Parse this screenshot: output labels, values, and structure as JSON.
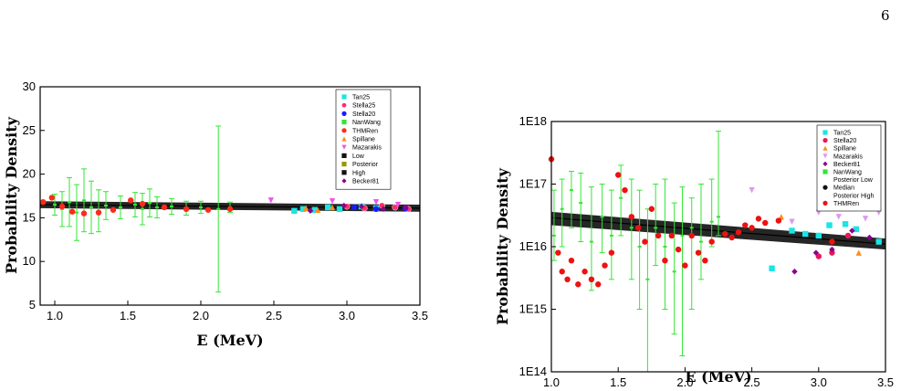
{
  "page": {
    "number": "6"
  },
  "chart_data": [
    {
      "type": "scatter",
      "title": "",
      "xlabel": "E (MeV)",
      "ylabel": "Probability Density",
      "xlim": [
        0.9,
        3.5
      ],
      "ylim": [
        5,
        30
      ],
      "yscale": "linear",
      "x_ticks": [
        "1.0",
        "1.5",
        "2.0",
        "2.5",
        "3.0",
        "3.5"
      ],
      "y_ticks": [
        "5",
        "10",
        "15",
        "20",
        "25",
        "30"
      ],
      "legend_position": "top-right",
      "band": {
        "x": [
          0.9,
          3.5
        ],
        "median": [
          16.5,
          16.1
        ],
        "low": [
          16.1,
          15.7
        ],
        "high": [
          16.9,
          16.5
        ],
        "color": "#000000"
      },
      "series": [
        {
          "name": "Tan25",
          "color": "#19e5e5",
          "marker": "square",
          "points": [
            [
              2.64,
              15.8
            ],
            [
              2.7,
              16.0
            ],
            [
              2.78,
              15.9
            ],
            [
              2.87,
              16.2
            ],
            [
              2.95,
              16.0
            ],
            [
              3.1,
              16.3
            ],
            [
              3.2,
              16.1
            ]
          ]
        },
        {
          "name": "Stella25",
          "color": "#ff2a6d",
          "marker": "half-circle",
          "points": [
            [
              3.0,
              16.3
            ],
            [
              3.12,
              16.1
            ],
            [
              3.24,
              16.4
            ],
            [
              3.33,
              16.2
            ],
            [
              3.42,
              16.0
            ]
          ]
        },
        {
          "name": "Stella20",
          "color": "#1a1aff",
          "marker": "circle",
          "points": [
            [
              3.05,
              16.2
            ],
            [
              3.2,
              16.0
            ],
            [
              3.4,
              16.1
            ]
          ]
        },
        {
          "name": "NanWang",
          "color": "#33e633",
          "marker": "dot",
          "points": [
            [
              1.0,
              16.5,
              1.2
            ],
            [
              1.05,
              16.0,
              2.0
            ],
            [
              1.1,
              16.8,
              2.8
            ],
            [
              1.15,
              15.6,
              3.2
            ],
            [
              1.2,
              17.0,
              3.6
            ],
            [
              1.25,
              16.2,
              3.0
            ],
            [
              1.3,
              15.8,
              2.4
            ],
            [
              1.35,
              16.4,
              1.6
            ],
            [
              1.45,
              16.2,
              1.3
            ],
            [
              1.55,
              16.5,
              1.4
            ],
            [
              1.6,
              16.0,
              1.8
            ],
            [
              1.65,
              16.7,
              1.6
            ],
            [
              1.7,
              16.2,
              1.2
            ],
            [
              1.8,
              16.3,
              0.9
            ],
            [
              1.9,
              16.1,
              0.8
            ],
            [
              2.0,
              16.2,
              0.7
            ],
            [
              2.12,
              16.0,
              9.5
            ],
            [
              2.2,
              16.2,
              0.6
            ]
          ]
        },
        {
          "name": "THMRen",
          "color": "#ff2a1a",
          "marker": "circle",
          "points": [
            [
              0.92,
              16.8
            ],
            [
              0.98,
              17.3
            ],
            [
              1.05,
              16.3
            ],
            [
              1.12,
              15.7
            ],
            [
              1.2,
              15.5
            ],
            [
              1.3,
              15.6
            ],
            [
              1.4,
              15.9
            ],
            [
              1.52,
              17.0
            ],
            [
              1.6,
              16.6
            ],
            [
              1.75,
              16.2
            ],
            [
              1.9,
              16.0
            ],
            [
              2.05,
              15.9
            ],
            [
              2.2,
              16.0
            ]
          ]
        },
        {
          "name": "Spillane",
          "color": "#ff8c1a",
          "marker": "triangle",
          "points": [
            [
              2.72,
              16.1
            ],
            [
              2.8,
              15.9
            ],
            [
              2.9,
              16.2
            ]
          ]
        },
        {
          "name": "Mazarakis",
          "color": "#ee55ee",
          "marker": "tri-down",
          "points": [
            [
              2.48,
              17.0
            ],
            [
              2.9,
              16.9
            ],
            [
              3.2,
              16.8
            ],
            [
              3.35,
              16.5
            ]
          ]
        },
        {
          "name": "Low",
          "color": "#111111",
          "marker": "square",
          "points": []
        },
        {
          "name": "Posterior",
          "color": "#999900",
          "marker": "square",
          "points": []
        },
        {
          "name": "High",
          "color": "#111111",
          "marker": "square",
          "points": []
        },
        {
          "name": "Becker81",
          "color": "#8b008b",
          "marker": "diamond",
          "points": [
            [
              2.75,
              15.8
            ],
            [
              2.98,
              16.4
            ],
            [
              3.1,
              16.3
            ],
            [
              3.25,
              16.0
            ],
            [
              3.4,
              16.2
            ]
          ]
        }
      ]
    },
    {
      "type": "scatter",
      "title": "",
      "xlabel": "E (MeV)",
      "ylabel": "Probability Density",
      "xlim": [
        1.0,
        3.5
      ],
      "ylim": [
        100000000000000.0,
        1e+18
      ],
      "yscale": "log",
      "x_ticks": [
        "1.0",
        "1.5",
        "2.0",
        "2.5",
        "3.0",
        "3.5"
      ],
      "y_ticks": [
        "1E14",
        "1E15",
        "1E16",
        "1E17",
        "1E18"
      ],
      "legend_position": "top-right",
      "band": {
        "x": [
          1.0,
          3.5
        ],
        "median": [
          2.9e+16,
          1.1e+16
        ],
        "low": [
          2.2e+16,
          9000000000000000.0
        ],
        "high": [
          3.6e+16,
          1.35e+16
        ],
        "color": "#000000"
      },
      "series": [
        {
          "name": "Tan25",
          "color": "#19e5e5",
          "marker": "square",
          "points": [
            [
              2.65,
              4500000000000000.0
            ],
            [
              2.8,
              1.8e+16
            ],
            [
              2.9,
              1.6e+16
            ],
            [
              3.0,
              1.5e+16
            ],
            [
              3.08,
              2.2e+16
            ],
            [
              3.2,
              2.3e+16
            ],
            [
              3.28,
              1.9e+16
            ],
            [
              3.45,
              1.2e+16
            ]
          ]
        },
        {
          "name": "Stella20",
          "color": "#e6195a",
          "marker": "circle",
          "points": [
            [
              3.0,
              7000000000000000.0
            ],
            [
              3.1,
              8000000000000000.0
            ],
            [
              3.22,
              1.5e+16
            ]
          ]
        },
        {
          "name": "Spillane",
          "color": "#ff8c1a",
          "marker": "triangle",
          "points": [
            [
              2.72,
              3e+16
            ],
            [
              3.3,
              8000000000000000.0
            ]
          ]
        },
        {
          "name": "Mazarakis",
          "color": "#dd99ee",
          "marker": "tri-down",
          "points": [
            [
              2.5,
              8e+16
            ],
            [
              2.8,
              2.5e+16
            ],
            [
              3.0,
              3.5e+16
            ],
            [
              3.15,
              3e+16
            ],
            [
              3.35,
              2.8e+16
            ],
            [
              3.45,
              3.5e+16
            ]
          ]
        },
        {
          "name": "Becker81",
          "color": "#8b008b",
          "marker": "diamond",
          "points": [
            [
              2.82,
              4000000000000000.0
            ],
            [
              2.98,
              8000000000000000.0
            ],
            [
              3.1,
              9000000000000000.0
            ],
            [
              3.25,
              1.8e+16
            ],
            [
              3.38,
              1.4e+16
            ]
          ]
        },
        {
          "name": "NanWang",
          "color": "#33e633",
          "marker": "dot",
          "points": [
            [
              1.02,
              1.5e+16,
              6000000000000000.0,
              8e+16
            ],
            [
              1.08,
              4e+16,
              1e+16,
              1.2e+17
            ],
            [
              1.15,
              8e+16,
              2e+16,
              1.6e+17
            ],
            [
              1.22,
              5e+16,
              1.2e+16,
              1.5e+17
            ],
            [
              1.3,
              1.2e+16,
              2000000000000000.0,
              9e+16
            ],
            [
              1.38,
              3e+16,
              8000000000000000.0,
              1e+17
            ],
            [
              1.45,
              1.5e+16,
              3000000000000000.0,
              8e+16
            ],
            [
              1.52,
              6e+16,
              1.5e+16,
              2e+17
            ],
            [
              1.6,
              2e+16,
              3000000000000000.0,
              1.2e+17
            ],
            [
              1.66,
              1e+16,
              1000000000000000.0,
              8e+16
            ],
            [
              1.72,
              3000000000000000.0,
              100000000000000.0,
              4e+16
            ],
            [
              1.78,
              2e+16,
              5000000000000000.0,
              1e+17
            ],
            [
              1.85,
              1e+16,
              1000000000000000.0,
              1.2e+17
            ],
            [
              1.92,
              4000000000000000.0,
              400000000000000.0,
              5e+16
            ],
            [
              1.98,
              1.5e+16,
              180000000000000.0,
              9e+16
            ],
            [
              2.05,
              2e+16,
              1000000000000000.0,
              6e+16
            ],
            [
              2.12,
              1.2e+16,
              3000000000000000.0,
              1e+17
            ],
            [
              2.2,
              2.5e+16,
              1e+16,
              1.2e+17
            ],
            [
              2.25,
              3e+16,
              1.5e+16,
              7e+17
            ]
          ]
        },
        {
          "name": "Posterior Low",
          "color": "#ffffff",
          "marker": "none",
          "points": []
        },
        {
          "name": "Median",
          "color": "#111111",
          "marker": "circle",
          "points": []
        },
        {
          "name": "Posterior High",
          "color": "#ffffff",
          "marker": "none",
          "points": []
        },
        {
          "name": "THMRen",
          "color": "#ee1111",
          "marker": "circle",
          "points": [
            [
              1.0,
              2.5e+17
            ],
            [
              1.05,
              8000000000000000.0
            ],
            [
              1.08,
              4000000000000000.0
            ],
            [
              1.12,
              3000000000000000.0
            ],
            [
              1.15,
              6000000000000000.0
            ],
            [
              1.2,
              2500000000000000.0
            ],
            [
              1.25,
              4000000000000000.0
            ],
            [
              1.3,
              3000000000000000.0
            ],
            [
              1.35,
              2500000000000000.0
            ],
            [
              1.4,
              5000000000000000.0
            ],
            [
              1.45,
              8000000000000000.0
            ],
            [
              1.5,
              1.4e+17
            ],
            [
              1.55,
              8e+16
            ],
            [
              1.6,
              3e+16
            ],
            [
              1.65,
              2e+16
            ],
            [
              1.7,
              1.2e+16
            ],
            [
              1.75,
              4e+16
            ],
            [
              1.8,
              1.5e+16
            ],
            [
              1.85,
              6000000000000000.0
            ],
            [
              1.9,
              1.5e+16
            ],
            [
              1.95,
              9000000000000000.0
            ],
            [
              2.0,
              5000000000000000.0
            ],
            [
              2.05,
              1.5e+16
            ],
            [
              2.1,
              8000000000000000.0
            ],
            [
              2.15,
              6000000000000000.0
            ],
            [
              2.2,
              1.2e+16
            ],
            [
              2.3,
              1.6e+16
            ],
            [
              2.35,
              1.4e+16
            ],
            [
              2.4,
              1.7e+16
            ],
            [
              2.45,
              2.2e+16
            ],
            [
              2.5,
              2e+16
            ],
            [
              2.55,
              2.8e+16
            ],
            [
              2.6,
              2.4e+16
            ],
            [
              2.7,
              2.6e+16
            ],
            [
              3.1,
              1.2e+16
            ]
          ]
        }
      ]
    }
  ]
}
